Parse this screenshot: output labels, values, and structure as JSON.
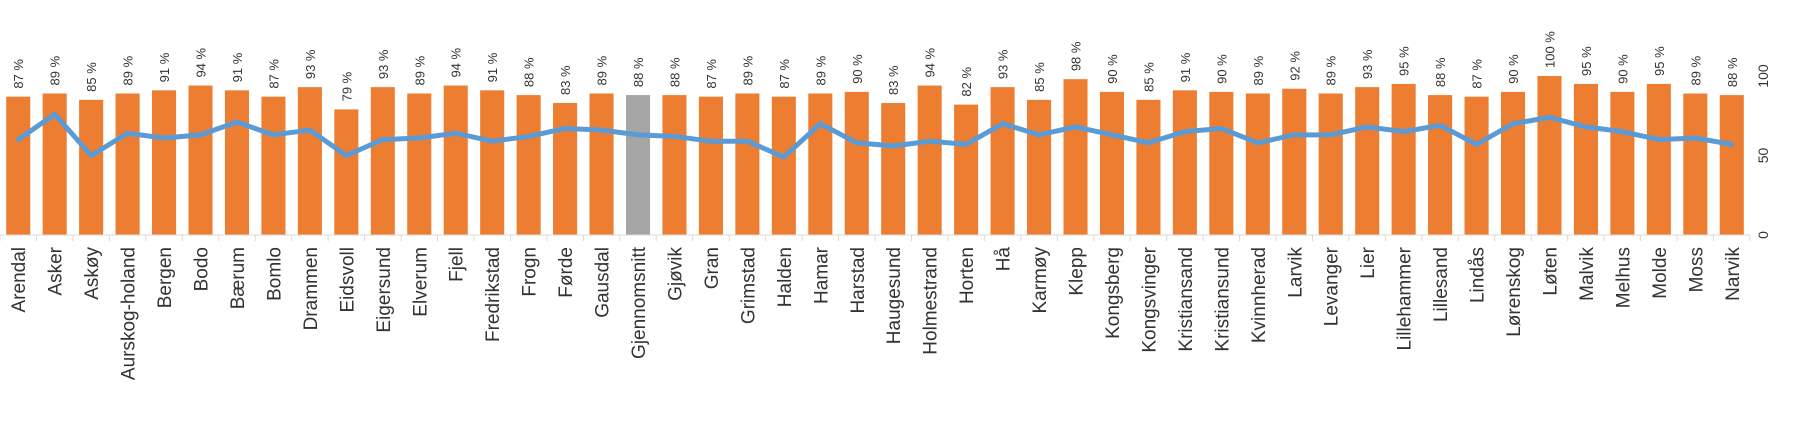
{
  "chart_data": {
    "type": "bar",
    "categories": [
      "Arendal",
      "Asker",
      "Askøy",
      "Aurskog-holand",
      "Bergen",
      "Bodo",
      "Bærum",
      "Bomlo",
      "Drammen",
      "Eidsvoll",
      "Eigersund",
      "Elverum",
      "Fjell",
      "Fredrikstad",
      "Frogn",
      "Førde",
      "Gausdal",
      "Gjennomsnitt",
      "Gjøvik",
      "Gran",
      "Grimstad",
      "Halden",
      "Hamar",
      "Harstad",
      "Haugesund",
      "Holmestrand",
      "Horten",
      "Hå",
      "Karmøy",
      "Klepp",
      "Kongsberg",
      "Kongsvinger",
      "Kristiansand",
      "Kristiansund",
      "Kvinnherad",
      "Larvik",
      "Levanger",
      "Lier",
      "Lillehammer",
      "Lillesand",
      "Lindås",
      "Lørenskog",
      "Løten",
      "Malvik",
      "Melhus",
      "Molde",
      "Moss",
      "Narvik"
    ],
    "series": [
      {
        "type": "bar",
        "color": "#ED7D31",
        "highlight_color": "#A5A5A5",
        "highlight_category": "Gjennomsnitt",
        "values": [
          87,
          89,
          85,
          89,
          91,
          94,
          91,
          87,
          93,
          79,
          93,
          89,
          94,
          91,
          88,
          83,
          89,
          88,
          88,
          87,
          89,
          87,
          89,
          90,
          83,
          94,
          82,
          93,
          85,
          98,
          90,
          85,
          91,
          90,
          89,
          92,
          89,
          93,
          95,
          88,
          87,
          90,
          100,
          95,
          90,
          95,
          89,
          88
        ],
        "data_labels": [
          "87 %",
          "89 %",
          "85 %",
          "89 %",
          "91 %",
          "94 %",
          "91 %",
          "87 %",
          "93 %",
          "79 %",
          "93 %",
          "89 %",
          "94 %",
          "91 %",
          "88 %",
          "83 %",
          "89 %",
          "88 %",
          "88 %",
          "87 %",
          "89 %",
          "87 %",
          "89 %",
          "90 %",
          "83 %",
          "94 %",
          "82 %",
          "93 %",
          "85 %",
          "98 %",
          "90 %",
          "85 %",
          "91 %",
          "90 %",
          "89 %",
          "92 %",
          "89 %",
          "93 %",
          "95 %",
          "88 %",
          "87 %",
          "90 %",
          "100 %",
          "95 %",
          "90 %",
          "95 %",
          "89 %",
          "88 %"
        ]
      },
      {
        "type": "line",
        "color": "#5B9BD5",
        "values": [
          60,
          76,
          50,
          64,
          61,
          63,
          71,
          63,
          66,
          50,
          60,
          61,
          64,
          59,
          62,
          67,
          66,
          63,
          62,
          59,
          59,
          49,
          70,
          58,
          56,
          59,
          57,
          70,
          63,
          68,
          63,
          58,
          65,
          67,
          58,
          63,
          63,
          68,
          65,
          69,
          57,
          70,
          74,
          68,
          65,
          60,
          61,
          57
        ]
      }
    ],
    "y_axis": {
      "min": 0,
      "max": 100,
      "ticks": [
        "0",
        "50",
        "100"
      ],
      "position": "right"
    },
    "gridlines": false,
    "legend": "none",
    "title": "",
    "xlabel": "",
    "ylabel": ""
  }
}
